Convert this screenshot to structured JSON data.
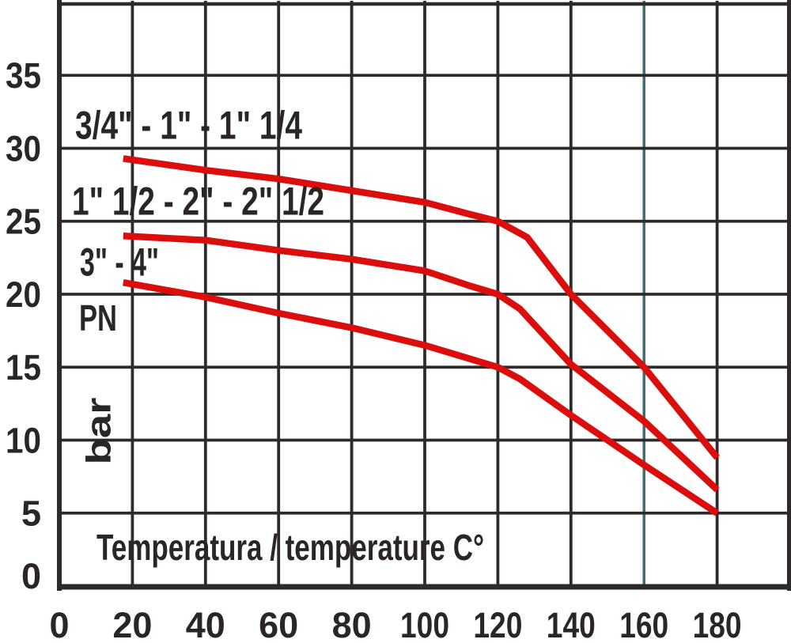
{
  "chart_data": {
    "type": "line",
    "title": "",
    "xlabel": "Temperatura / temperature C°",
    "pressure_label": "PN",
    "pressure_unit_label": "bar",
    "xlim": [
      0,
      200
    ],
    "ylim": [
      0,
      40
    ],
    "x_tick_step": 20,
    "y_tick_step": 5,
    "x_ticks": [
      0,
      20,
      40,
      60,
      80,
      100,
      120,
      140,
      160,
      180
    ],
    "y_ticks": [
      0,
      5,
      10,
      15,
      20,
      25,
      30,
      35
    ],
    "grid": true,
    "legend_position": "labels-inside-plot",
    "accent_gridline_x": 160,
    "series": [
      {
        "name": "3/4\" - 1\" - 1\" 1/4",
        "color": "#db0e0e",
        "points": [
          [
            17.5,
            29.3
          ],
          [
            40,
            28.5
          ],
          [
            60,
            27.9
          ],
          [
            80,
            27.1
          ],
          [
            100,
            26.3
          ],
          [
            112,
            25.5
          ],
          [
            120,
            25
          ],
          [
            128,
            23.9
          ],
          [
            140,
            20
          ],
          [
            160,
            15
          ],
          [
            180,
            8.8
          ]
        ]
      },
      {
        "name": "1\" 1/2 - 2\" - 2\" 1/2",
        "color": "#db0e0e",
        "points": [
          [
            17.5,
            24
          ],
          [
            40,
            23.7
          ],
          [
            60,
            23
          ],
          [
            80,
            22.4
          ],
          [
            100,
            21.6
          ],
          [
            112,
            20.6
          ],
          [
            120,
            20
          ],
          [
            126,
            19
          ],
          [
            140,
            15.2
          ],
          [
            160,
            11.3
          ],
          [
            180,
            6.6
          ]
        ]
      },
      {
        "name": "3\" - 4\"",
        "color": "#db0e0e",
        "points": [
          [
            17.5,
            20.8
          ],
          [
            40,
            19.8
          ],
          [
            60,
            18.7
          ],
          [
            80,
            17.7
          ],
          [
            100,
            16.5
          ],
          [
            112,
            15.6
          ],
          [
            120,
            15
          ],
          [
            126,
            14.2
          ],
          [
            140,
            11.7
          ],
          [
            160,
            8.3
          ],
          [
            180,
            5
          ]
        ]
      }
    ]
  },
  "colors": {
    "curve": "#db0e0e",
    "grid": "#2e2a2a",
    "text": "#2b2626",
    "accent_gridline": "#3f6e6e",
    "background": "#ffffff"
  }
}
